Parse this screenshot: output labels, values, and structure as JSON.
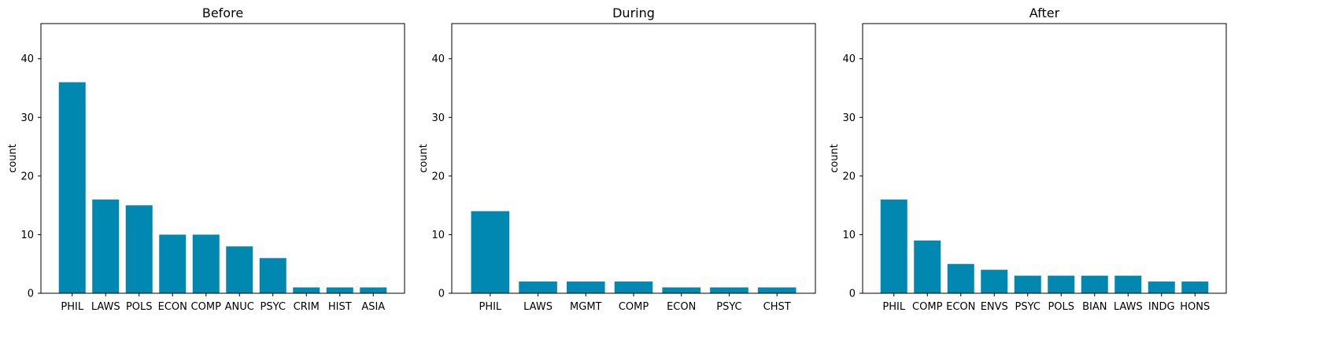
{
  "colors": {
    "bar": "#0088b0",
    "axis": "#000000",
    "background": "#ffffff"
  },
  "chart_data": [
    {
      "type": "bar",
      "title": "Before",
      "xlabel": "",
      "ylabel": "count",
      "ylim": [
        0,
        46
      ],
      "yticks": [
        0,
        10,
        20,
        30,
        40
      ],
      "grid": false,
      "categories": [
        "PHIL",
        "LAWS",
        "POLS",
        "ECON",
        "COMP",
        "ANUC",
        "PSYC",
        "CRIM",
        "HIST",
        "ASIA"
      ],
      "values": [
        36,
        16,
        15,
        10,
        10,
        8,
        6,
        1,
        1,
        1
      ]
    },
    {
      "type": "bar",
      "title": "During",
      "xlabel": "",
      "ylabel": "count",
      "ylim": [
        0,
        46
      ],
      "yticks": [
        0,
        10,
        20,
        30,
        40
      ],
      "grid": false,
      "categories": [
        "PHIL",
        "LAWS",
        "MGMT",
        "COMP",
        "ECON",
        "PSYC",
        "CHST"
      ],
      "values": [
        14,
        2,
        2,
        2,
        1,
        1,
        1
      ]
    },
    {
      "type": "bar",
      "title": "After",
      "xlabel": "",
      "ylabel": "count",
      "ylim": [
        0,
        46
      ],
      "yticks": [
        0,
        10,
        20,
        30,
        40
      ],
      "grid": false,
      "categories": [
        "PHIL",
        "COMP",
        "ECON",
        "ENVS",
        "PSYC",
        "POLS",
        "BIAN",
        "LAWS",
        "INDG",
        "HONS"
      ],
      "values": [
        16,
        9,
        5,
        4,
        3,
        3,
        3,
        3,
        2,
        2
      ]
    }
  ]
}
